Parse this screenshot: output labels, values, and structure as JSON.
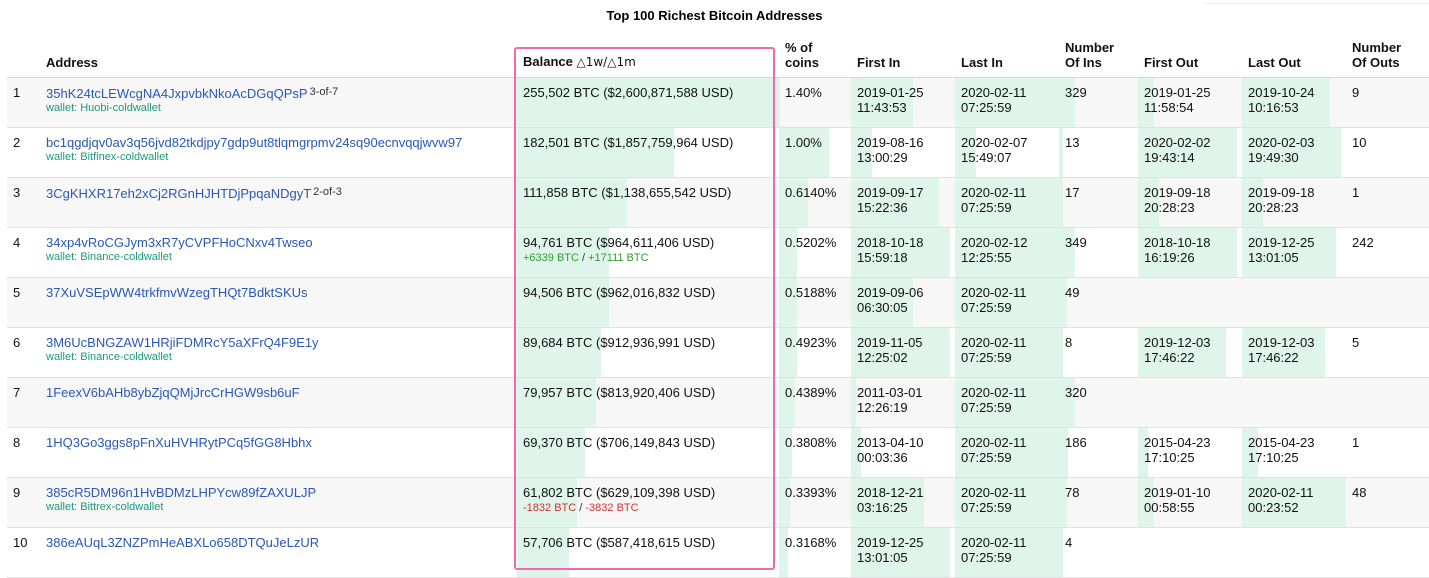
{
  "page": {
    "title": "Top 100 Richest Bitcoin Addresses"
  },
  "columns": {
    "rank": "",
    "address": "Address",
    "balance": "Balance",
    "balance_delta": "△1w/△1m",
    "pct_line1": "% of",
    "pct_line2": "coins",
    "first_in": "First In",
    "last_in": "Last In",
    "num_ins_line1": "Number",
    "num_ins_line2": "Of Ins",
    "first_out": "First Out",
    "last_out": "Last Out",
    "num_outs_line1": "Number",
    "num_outs_line2": "Of Outs"
  },
  "rows": [
    {
      "rank": "1",
      "address": "35hK24tcLEWcgNA4JxpvbkNkoAcDGqQPsP",
      "multisig": "3-of-7",
      "wallet": "wallet: Huobi-coldwallet",
      "balance": "255,502 BTC ($2,600,871,588 USD)",
      "d1w": "",
      "d1m": "",
      "pct": "1.40%",
      "first_in_date": "2019-01-25",
      "first_in_time": "11:43:53",
      "last_in_date": "2020-02-11",
      "last_in_time": "07:25:59",
      "num_ins": "329",
      "first_out_date": "2019-01-25",
      "first_out_time": "11:58:54",
      "last_out_date": "2019-10-24",
      "last_out_time": "10:16:53",
      "num_outs": "9",
      "balance_fill": 1.0,
      "pct_fill": 0.02,
      "first_in_fill": 0.6,
      "last_in_fill": 1.0,
      "num_ins_fill": 0.2,
      "first_out_fill": 0.15,
      "last_out_fill": 0.85
    },
    {
      "rank": "2",
      "address": "bc1qgdjqv0av3q56jvd82tkdjpy7gdp9ut8tlqmgrpmv24sq90ecnvqqjwvw97",
      "multisig": "",
      "wallet": "wallet: Bitfinex-coldwallet",
      "balance": "182,501 BTC ($1,857,759,964 USD)",
      "d1w": "",
      "d1m": "",
      "pct": "1.00%",
      "first_in_date": "2019-08-16",
      "first_in_time": "13:00:29",
      "last_in_date": "2020-02-07",
      "last_in_time": "15:49:07",
      "num_ins": "13",
      "first_out_date": "2020-02-02",
      "first_out_time": "19:43:14",
      "last_out_date": "2020-02-03",
      "last_out_time": "19:49:30",
      "num_outs": "10",
      "balance_fill": 0.6,
      "pct_fill": 0.7,
      "first_in_fill": 0.2,
      "last_in_fill": 0.2,
      "num_ins_fill": 0.05,
      "first_out_fill": 0.95,
      "last_out_fill": 0.95
    },
    {
      "rank": "3",
      "address": "3CgKHXR17eh2xCj2RGnHJHTDjPpqaNDgyT",
      "multisig": "2-of-3",
      "wallet": "",
      "balance": "111,858 BTC ($1,138,655,542 USD)",
      "d1w": "",
      "d1m": "",
      "pct": "0.6140%",
      "first_in_date": "2019-09-17",
      "first_in_time": "15:22:36",
      "last_in_date": "2020-02-11",
      "last_in_time": "07:25:59",
      "num_ins": "17",
      "first_out_date": "2019-09-18",
      "first_out_time": "20:28:23",
      "last_out_date": "2019-09-18",
      "last_out_time": "20:28:23",
      "num_outs": "1",
      "balance_fill": 0.42,
      "pct_fill": 0.4,
      "first_in_fill": 0.85,
      "last_in_fill": 1.0,
      "num_ins_fill": 0.05,
      "first_out_fill": 0.2,
      "last_out_fill": 0.2
    },
    {
      "rank": "4",
      "address": "34xp4vRoCGJym3xR7yCVPFHoCNxv4Twseo",
      "multisig": "",
      "wallet": "wallet: Binance-coldwallet",
      "balance": "94,761 BTC ($964,611,406 USD)",
      "d1w": "+6339 BTC",
      "d1m": "+17111 BTC",
      "delta_sign": "pos",
      "pct": "0.5202%",
      "first_in_date": "2018-10-18",
      "first_in_time": "15:59:18",
      "last_in_date": "2020-02-12",
      "last_in_time": "12:25:55",
      "num_ins": "349",
      "first_out_date": "2018-10-18",
      "first_out_time": "16:19:26",
      "last_out_date": "2019-12-25",
      "last_out_time": "13:01:05",
      "num_outs": "242",
      "balance_fill": 0.35,
      "pct_fill": 0.25,
      "first_in_fill": 0.95,
      "last_in_fill": 1.0,
      "num_ins_fill": 0.2,
      "first_out_fill": 0.95,
      "last_out_fill": 0.9
    },
    {
      "rank": "5",
      "address": "37XuVSEpWW4trkfmvWzegTHQt7BdktSKUs",
      "multisig": "",
      "wallet": "",
      "balance": "94,506 BTC ($962,016,832 USD)",
      "d1w": "",
      "d1m": "",
      "pct": "0.5188%",
      "first_in_date": "2019-09-06",
      "first_in_time": "06:30:05",
      "last_in_date": "2020-02-11",
      "last_in_time": "07:25:59",
      "num_ins": "49",
      "first_out_date": "",
      "first_out_time": "",
      "last_out_date": "",
      "last_out_time": "",
      "num_outs": "",
      "balance_fill": 0.35,
      "pct_fill": 0.25,
      "first_in_fill": 0.6,
      "last_in_fill": 1.0,
      "num_ins_fill": 0.1,
      "first_out_fill": 0,
      "last_out_fill": 0
    },
    {
      "rank": "6",
      "address": "3M6UcBNGZAW1HRjiFDMRcY5aXFrQ4F9E1y",
      "multisig": "",
      "wallet": "wallet: Binance-coldwallet",
      "balance": "89,684 BTC ($912,936,991 USD)",
      "d1w": "",
      "d1m": "",
      "pct": "0.4923%",
      "first_in_date": "2019-11-05",
      "first_in_time": "12:25:02",
      "last_in_date": "2020-02-11",
      "last_in_time": "07:25:59",
      "num_ins": "8",
      "first_out_date": "2019-12-03",
      "first_out_time": "17:46:22",
      "last_out_date": "2019-12-03",
      "last_out_time": "17:46:22",
      "num_outs": "5",
      "balance_fill": 0.32,
      "pct_fill": 0.25,
      "first_in_fill": 0.95,
      "last_in_fill": 1.0,
      "num_ins_fill": 0.05,
      "first_out_fill": 0.85,
      "last_out_fill": 0.8
    },
    {
      "rank": "7",
      "address": "1FeexV6bAHb8ybZjqQMjJrcCrHGW9sb6uF",
      "multisig": "",
      "wallet": "",
      "balance": "79,957 BTC ($813,920,406 USD)",
      "d1w": "",
      "d1m": "",
      "pct": "0.4389%",
      "first_in_date": "2011-03-01",
      "first_in_time": "12:26:19",
      "last_in_date": "2020-02-11",
      "last_in_time": "07:25:59",
      "num_ins": "320",
      "first_out_date": "",
      "first_out_time": "",
      "last_out_date": "",
      "last_out_time": "",
      "num_outs": "",
      "balance_fill": 0.3,
      "pct_fill": 0.22,
      "first_in_fill": 0.05,
      "last_in_fill": 1.0,
      "num_ins_fill": 0.2,
      "first_out_fill": 0,
      "last_out_fill": 0
    },
    {
      "rank": "8",
      "address": "1HQ3Go3ggs8pFnXuHVHRytPCq5fGG8Hbhx",
      "multisig": "",
      "wallet": "",
      "balance": "69,370 BTC ($706,149,843 USD)",
      "d1w": "",
      "d1m": "",
      "pct": "0.3808%",
      "first_in_date": "2013-04-10",
      "first_in_time": "00:03:36",
      "last_in_date": "2020-02-11",
      "last_in_time": "07:25:59",
      "num_ins": "186",
      "first_out_date": "2015-04-23",
      "first_out_time": "17:10:25",
      "last_out_date": "2015-04-23",
      "last_out_time": "17:10:25",
      "num_outs": "1",
      "balance_fill": 0.26,
      "pct_fill": 0.18,
      "first_in_fill": 0.1,
      "last_in_fill": 1.0,
      "num_ins_fill": 0.12,
      "first_out_fill": 0.1,
      "last_out_fill": 0.15
    },
    {
      "rank": "9",
      "address": "385cR5DM96n1HvBDMzLHPYcw89fZAXULJP",
      "multisig": "",
      "wallet": "wallet: Bittrex-coldwallet",
      "balance": "61,802 BTC ($629,109,398 USD)",
      "d1w": "-1832 BTC",
      "d1m": "-3832 BTC",
      "delta_sign": "neg",
      "pct": "0.3393%",
      "first_in_date": "2018-12-21",
      "first_in_time": "03:16:25",
      "last_in_date": "2020-02-11",
      "last_in_time": "07:25:59",
      "num_ins": "78",
      "first_out_date": "2019-01-10",
      "first_out_time": "00:58:55",
      "last_out_date": "2020-02-11",
      "last_out_time": "00:23:52",
      "num_outs": "48",
      "balance_fill": 0.23,
      "pct_fill": 0.15,
      "first_in_fill": 0.7,
      "last_in_fill": 1.0,
      "num_ins_fill": 0.1,
      "first_out_fill": 0.15,
      "last_out_fill": 1.0
    },
    {
      "rank": "10",
      "address": "386eAUqL3ZNZPmHeABXLo658DTQuJeLzUR",
      "multisig": "",
      "wallet": "",
      "balance": "57,706 BTC ($587,418,615 USD)",
      "d1w": "",
      "d1m": "",
      "pct": "0.3168%",
      "first_in_date": "2019-12-25",
      "first_in_time": "13:01:05",
      "last_in_date": "2020-02-11",
      "last_in_time": "07:25:59",
      "num_ins": "4",
      "first_out_date": "",
      "first_out_time": "",
      "last_out_date": "",
      "last_out_time": "",
      "num_outs": "",
      "balance_fill": 0.2,
      "pct_fill": 0.12,
      "first_in_fill": 0.95,
      "last_in_fill": 1.0,
      "num_ins_fill": 0.05,
      "first_out_fill": 0,
      "last_out_fill": 0
    }
  ]
}
